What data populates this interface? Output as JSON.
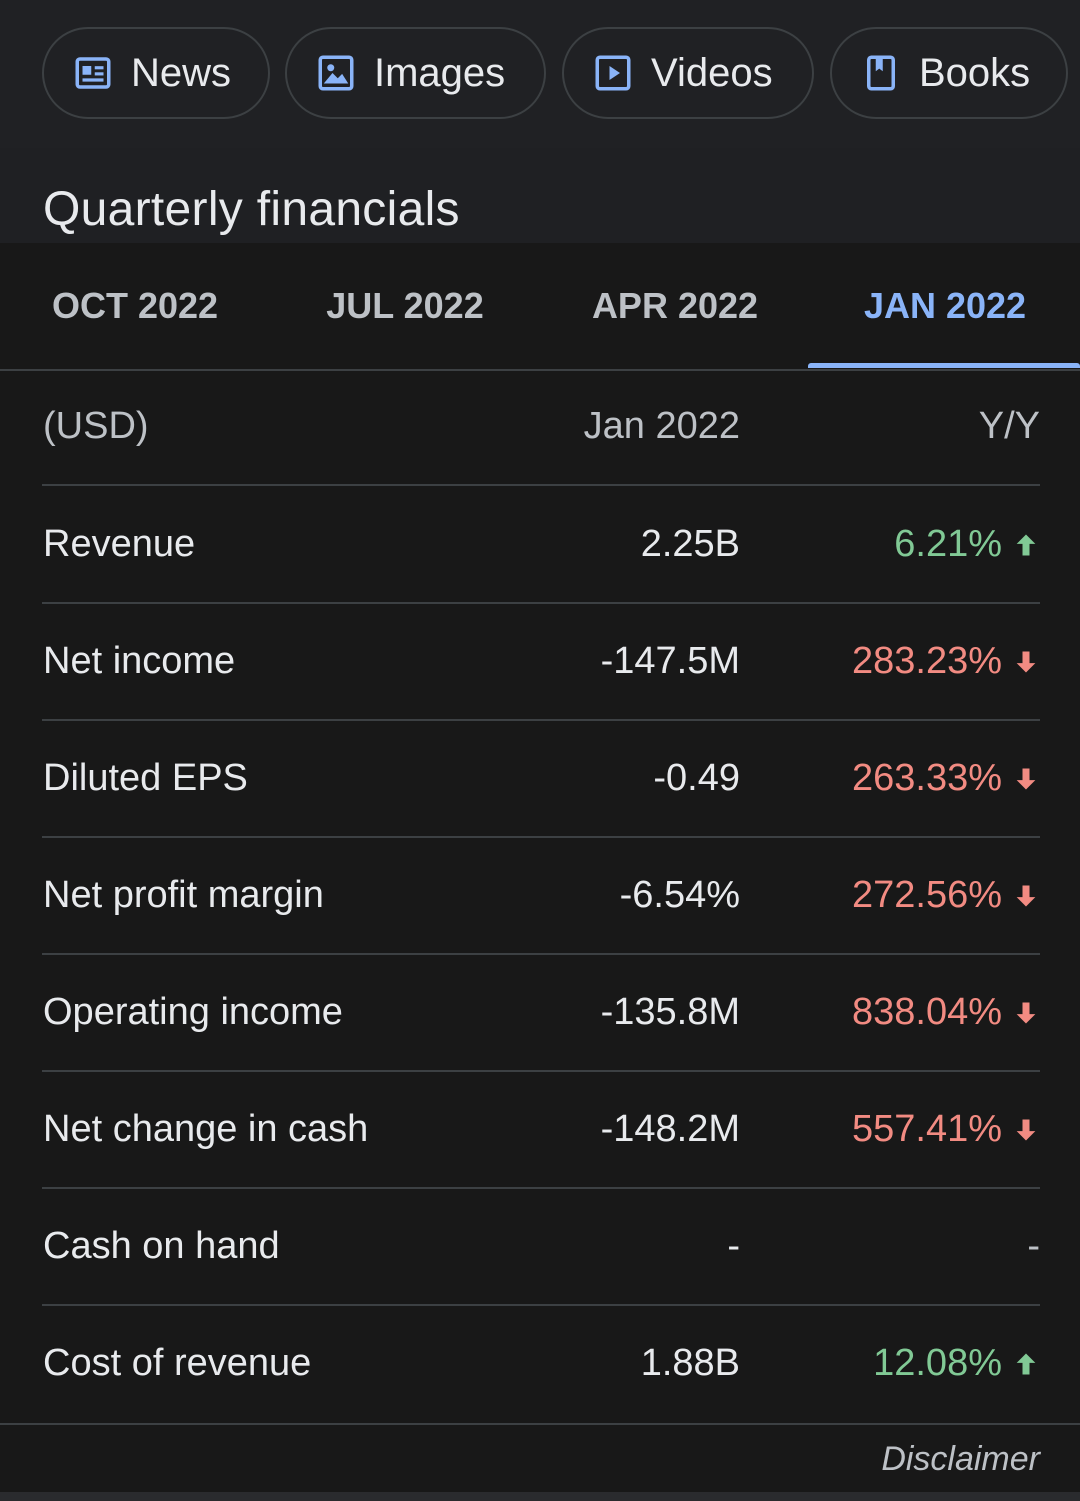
{
  "chips": [
    {
      "label": "News",
      "icon": "news-icon"
    },
    {
      "label": "Images",
      "icon": "image-icon"
    },
    {
      "label": "Videos",
      "icon": "video-icon"
    },
    {
      "label": "Books",
      "icon": "book-icon"
    }
  ],
  "section_title": "Quarterly financials",
  "tabs": [
    {
      "label": "OCT 2022",
      "active": false
    },
    {
      "label": "JUL 2022",
      "active": false
    },
    {
      "label": "APR 2022",
      "active": false
    },
    {
      "label": "JAN 2022",
      "active": true
    }
  ],
  "table": {
    "header": {
      "label": "(USD)",
      "value": "Jan 2022",
      "yy": "Y/Y"
    },
    "rows": [
      {
        "label": "Revenue",
        "value": "2.25B",
        "yy": "6.21%",
        "trend": "up"
      },
      {
        "label": "Net income",
        "value": "-147.5M",
        "yy": "283.23%",
        "trend": "down"
      },
      {
        "label": "Diluted EPS",
        "value": "-0.49",
        "yy": "263.33%",
        "trend": "down"
      },
      {
        "label": "Net profit margin",
        "value": "-6.54%",
        "yy": "272.56%",
        "trend": "down"
      },
      {
        "label": "Operating income",
        "value": "-135.8M",
        "yy": "838.04%",
        "trend": "down"
      },
      {
        "label": "Net change in cash",
        "value": "-148.2M",
        "yy": "557.41%",
        "trend": "down"
      },
      {
        "label": "Cash on hand",
        "value": "-",
        "yy": "-",
        "trend": "none"
      },
      {
        "label": "Cost of revenue",
        "value": "1.88B",
        "yy": "12.08%",
        "trend": "up"
      }
    ]
  },
  "disclaimer": "Disclaimer",
  "colors": {
    "accent": "#8ab4f8",
    "positive": "#81c995",
    "negative": "#f28b82",
    "background": "#181818"
  }
}
